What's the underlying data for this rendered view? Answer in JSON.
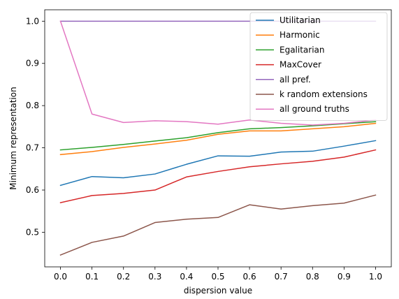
{
  "chart_data": {
    "type": "line",
    "title": "",
    "xlabel": "dispersion value",
    "ylabel": "Minimum representation",
    "x": [
      0.0,
      0.1,
      0.2,
      0.3,
      0.4,
      0.5,
      0.6,
      0.7,
      0.8,
      0.9,
      1.0
    ],
    "xticks": [
      "0.0",
      "0.1",
      "0.2",
      "0.3",
      "0.4",
      "0.5",
      "0.6",
      "0.7",
      "0.8",
      "0.9",
      "1.0"
    ],
    "yticks": [
      "0.5",
      "0.6",
      "0.7",
      "0.8",
      "0.9",
      "1.0"
    ],
    "xlim": [
      -0.05,
      1.05
    ],
    "ylim": [
      0.418,
      1.027
    ],
    "grid": false,
    "legend_position": "top-right",
    "series": [
      {
        "name": "Utilitarian",
        "color": "#1f77b4",
        "values": [
          0.611,
          0.632,
          0.629,
          0.638,
          0.661,
          0.681,
          0.68,
          0.69,
          0.692,
          0.704,
          0.717
        ]
      },
      {
        "name": "Harmonic",
        "color": "#ff7f0e",
        "values": [
          0.684,
          0.691,
          0.701,
          0.709,
          0.718,
          0.732,
          0.74,
          0.74,
          0.745,
          0.75,
          0.758
        ]
      },
      {
        "name": "Egalitarian",
        "color": "#2ca02c",
        "values": [
          0.695,
          0.701,
          0.708,
          0.716,
          0.724,
          0.736,
          0.745,
          0.748,
          0.752,
          0.757,
          0.762
        ]
      },
      {
        "name": "MaxCover",
        "color": "#d62728",
        "values": [
          0.57,
          0.587,
          0.592,
          0.6,
          0.631,
          0.644,
          0.655,
          0.662,
          0.668,
          0.678,
          0.695
        ]
      },
      {
        "name": "all pref.",
        "color": "#9467bd",
        "values": [
          1.0,
          1.0,
          1.0,
          1.0,
          1.0,
          1.0,
          1.0,
          1.0,
          1.0,
          1.0,
          1.0
        ]
      },
      {
        "name": "k random extensions",
        "color": "#8c564b",
        "values": [
          0.446,
          0.476,
          0.491,
          0.523,
          0.531,
          0.535,
          0.565,
          0.555,
          0.563,
          0.569,
          0.588
        ]
      },
      {
        "name": "all ground truths",
        "color": "#e377c2",
        "values": [
          1.0,
          0.78,
          0.76,
          0.764,
          0.762,
          0.756,
          0.766,
          0.758,
          0.754,
          0.758,
          0.766
        ]
      }
    ]
  }
}
